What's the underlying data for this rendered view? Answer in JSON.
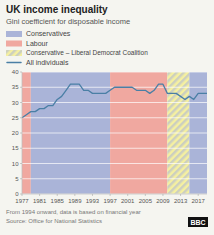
{
  "chart_data": {
    "type": "line",
    "title": "UK income inequality",
    "subtitle": "Gini coefficient for disposable income",
    "footnote": "From 1994 onward, data is based on financial year",
    "source": "Source: Office for National Statistics",
    "logo": "BBC",
    "background": "#f5f5f0",
    "x": [
      1977,
      1978,
      1979,
      1980,
      1981,
      1982,
      1983,
      1984,
      1985,
      1986,
      1987,
      1988,
      1989,
      1990,
      1991,
      1992,
      1993,
      1994,
      1995,
      1996,
      1997,
      1998,
      1999,
      2000,
      2001,
      2002,
      2003,
      2004,
      2005,
      2006,
      2007,
      2008,
      2009,
      2010,
      2011,
      2012,
      2013,
      2014,
      2015,
      2016,
      2017,
      2018,
      2019
    ],
    "series": [
      {
        "name": "All individuals",
        "color": "#4a7fa5",
        "values": [
          25,
          26,
          27,
          27,
          28,
          28,
          29,
          29,
          31,
          32,
          34,
          36,
          36,
          36,
          34,
          34,
          33,
          33,
          33,
          33,
          34,
          35,
          35,
          35,
          35,
          35,
          34,
          34,
          34,
          33,
          34,
          36,
          36,
          33,
          33,
          33,
          32,
          31,
          32,
          31,
          33,
          33,
          33
        ]
      }
    ],
    "parties": [
      {
        "name": "Conservatives",
        "color": "#aab4d8"
      },
      {
        "name": "Labour",
        "color": "#f0a8a0"
      },
      {
        "name": "Conservative – Liberal Democrat Coalition",
        "color": "#f5f0a0",
        "stripe_color": "#aab4d8"
      }
    ],
    "bands": [
      {
        "party": "Labour",
        "start": 1977,
        "end": 1979
      },
      {
        "party": "Conservatives",
        "start": 1979,
        "end": 1997
      },
      {
        "party": "Labour",
        "start": 1997,
        "end": 2010
      },
      {
        "party": "Conservative – Liberal Democrat Coalition",
        "start": 2010,
        "end": 2015
      },
      {
        "party": "Conservatives",
        "start": 2015,
        "end": 2019
      }
    ],
    "xlim": [
      1977,
      2019
    ],
    "xticks": [
      1977,
      1981,
      1985,
      1989,
      1993,
      1997,
      2001,
      2005,
      2009,
      2013,
      2017
    ],
    "ylim": [
      0,
      40
    ],
    "yticks": [
      0,
      5,
      10,
      15,
      20,
      25,
      30,
      35,
      40
    ],
    "grid": true
  }
}
